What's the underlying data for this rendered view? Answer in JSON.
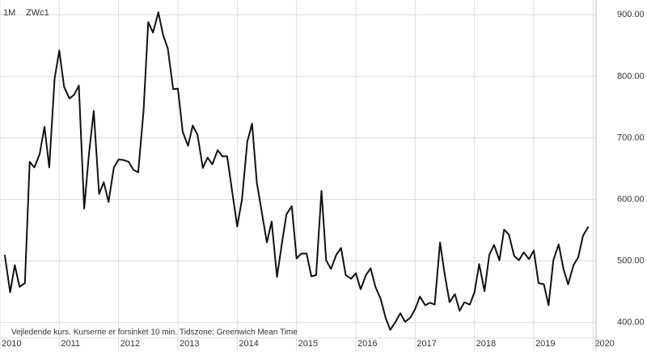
{
  "chart_data": {
    "type": "line",
    "title": "ZWc1",
    "subtitle": "1M",
    "annotations": [
      "Vejledende kurs. Kurserne er forsinket 10 min.",
      "Tidszone: Greenwich Mean Time"
    ],
    "x": [
      2010.08,
      2010.17,
      2010.25,
      2010.33,
      2010.42,
      2010.5,
      2010.58,
      2010.67,
      2010.75,
      2010.83,
      2010.92,
      2011.0,
      2011.08,
      2011.17,
      2011.25,
      2011.33,
      2011.42,
      2011.5,
      2011.58,
      2011.67,
      2011.75,
      2011.83,
      2011.92,
      2012.0,
      2012.08,
      2012.17,
      2012.25,
      2012.33,
      2012.42,
      2012.5,
      2012.58,
      2012.67,
      2012.75,
      2012.83,
      2012.92,
      2013.0,
      2013.08,
      2013.17,
      2013.25,
      2013.33,
      2013.42,
      2013.5,
      2013.58,
      2013.67,
      2013.75,
      2013.83,
      2013.92,
      2014.0,
      2014.08,
      2014.17,
      2014.25,
      2014.33,
      2014.42,
      2014.5,
      2014.58,
      2014.67,
      2014.75,
      2014.83,
      2014.92,
      2015.0,
      2015.08,
      2015.17,
      2015.25,
      2015.33,
      2015.42,
      2015.5,
      2015.58,
      2015.67,
      2015.75,
      2015.83,
      2015.92,
      2016.0,
      2016.08,
      2016.17,
      2016.25,
      2016.33,
      2016.42,
      2016.5,
      2016.58,
      2016.67,
      2016.75,
      2016.83,
      2016.92,
      2017.0,
      2017.08,
      2017.17,
      2017.25,
      2017.33,
      2017.42,
      2017.5,
      2017.58,
      2017.67,
      2017.75,
      2017.83,
      2017.92,
      2018.0,
      2018.08,
      2018.17,
      2018.25,
      2018.33,
      2018.42,
      2018.5,
      2018.58,
      2018.67,
      2018.75,
      2018.83,
      2018.92,
      2019.0,
      2019.08,
      2019.17,
      2019.25,
      2019.33,
      2019.42,
      2019.5,
      2019.58,
      2019.67,
      2019.75,
      2019.83,
      2019.92
    ],
    "series": [
      {
        "name": "ZWc1",
        "color": "#111111",
        "values": [
          510,
          449,
          493,
          458,
          464,
          661,
          652,
          674,
          718,
          652,
          796,
          842,
          783,
          764,
          770,
          785,
          585,
          674,
          744,
          609,
          628,
          596,
          652,
          665,
          664,
          661,
          648,
          644,
          744,
          888,
          871,
          904,
          867,
          845,
          779,
          780,
          710,
          687,
          720,
          705,
          651,
          668,
          657,
          680,
          670,
          670,
          609,
          556,
          600,
          694,
          723,
          628,
          576,
          530,
          564,
          474,
          526,
          576,
          589,
          504,
          512,
          512,
          475,
          477,
          614,
          501,
          487,
          510,
          521,
          477,
          471,
          480,
          454,
          477,
          488,
          458,
          438,
          408,
          388,
          401,
          415,
          401,
          408,
          422,
          442,
          428,
          432,
          429,
          530,
          477,
          433,
          446,
          419,
          433,
          429,
          449,
          495,
          451,
          510,
          526,
          501,
          551,
          543,
          508,
          501,
          514,
          503,
          517,
          464,
          462,
          428,
          501,
          527,
          487,
          462,
          493,
          506,
          541,
          556
        ]
      }
    ],
    "xlim": [
      2010,
      2020.05
    ],
    "xticks": [
      2010,
      2011,
      2012,
      2013,
      2014,
      2015,
      2016,
      2017,
      2018,
      2019,
      2020
    ],
    "ylim": [
      372,
      924
    ],
    "yticks": [
      {
        "value": 400,
        "label": "400.00"
      },
      {
        "value": 500,
        "label": "500.00"
      },
      {
        "value": 600,
        "label": "600.00"
      },
      {
        "value": 700,
        "label": "700.00"
      },
      {
        "value": 800,
        "label": "800.00"
      },
      {
        "value": 900,
        "label": "900.00"
      }
    ],
    "grid": true
  }
}
